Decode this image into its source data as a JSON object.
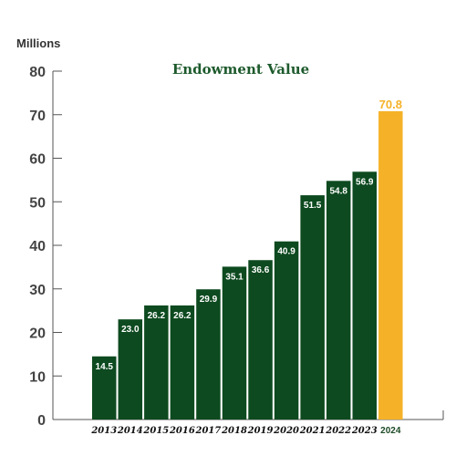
{
  "chart_data": {
    "type": "bar",
    "title": "Endowment Value",
    "ylabel": "Millions",
    "xlabel": "",
    "categories": [
      "2013",
      "2014",
      "2015",
      "2016",
      "2017",
      "2018",
      "2019",
      "2020",
      "2021",
      "2022",
      "2023",
      "2024"
    ],
    "values": [
      14.5,
      23.0,
      26.2,
      26.2,
      29.9,
      35.1,
      36.6,
      40.9,
      51.5,
      54.8,
      56.9,
      70.8
    ],
    "value_labels": [
      "14.5",
      "23.0",
      "26.2",
      "26.2",
      "29.9",
      "35.1",
      "36.6",
      "40.9",
      "51.5",
      "54.8",
      "56.9",
      "70.8"
    ],
    "ylim": [
      0,
      80
    ],
    "yticks": [
      0,
      10,
      20,
      30,
      40,
      50,
      60,
      70,
      80
    ],
    "grid": false,
    "highlight_category": "2024",
    "colors": {
      "bar": "#0d4a1f",
      "highlight": "#f5b228",
      "title": "#1d5a2c",
      "axis": "#555555"
    }
  }
}
